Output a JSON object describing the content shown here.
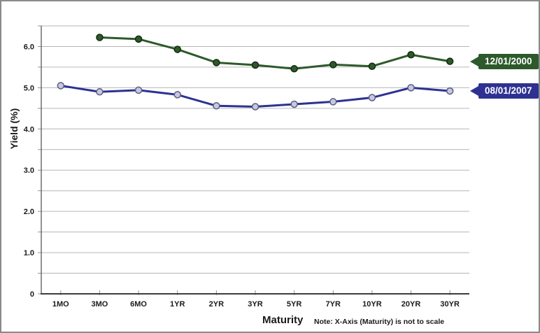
{
  "chart_data": {
    "type": "line",
    "title": "",
    "xlabel": "Maturity",
    "ylabel": "Yield (%)",
    "note": "Note: X-Axis (Maturity) is not to scale",
    "categories": [
      "1MO",
      "3MO",
      "6MO",
      "1YR",
      "2YR",
      "3YR",
      "5YR",
      "7YR",
      "10YR",
      "20YR",
      "30YR"
    ],
    "series": [
      {
        "name": "12/01/2000",
        "color": "#2d5a2b",
        "marker_fill": "#2d5a2b",
        "marker_edge": "#13290f",
        "values": [
          null,
          6.22,
          6.18,
          5.93,
          5.61,
          5.55,
          5.46,
          5.56,
          5.52,
          5.8,
          5.64
        ]
      },
      {
        "name": "08/01/2007",
        "color": "#2e3192",
        "marker_fill": "#c7c8de",
        "marker_edge": "#5a5b84",
        "values": [
          5.05,
          4.9,
          4.94,
          4.83,
          4.56,
          4.54,
          4.6,
          4.66,
          4.76,
          5.0,
          4.92
        ]
      }
    ],
    "ylim": [
      0,
      6.5
    ],
    "grid_step": 0.5,
    "grid": true,
    "legend_position": "right-callouts",
    "y_ticks": [
      {
        "value": 6,
        "label": "6.0"
      },
      {
        "value": 5,
        "label": "5.0"
      },
      {
        "value": 4,
        "label": "4.0"
      },
      {
        "value": 3,
        "label": "3.0"
      },
      {
        "value": 2,
        "label": "2.0"
      },
      {
        "value": 1,
        "label": "1.0"
      },
      {
        "value": 0,
        "label": "0"
      }
    ],
    "colors": {
      "gridline": "#b6b6b6",
      "x_axis": "#3d3d3d",
      "y_axis": "#6f6f6f",
      "tick": "#8f8f8f",
      "text": "#1a1a1a",
      "frame_border": "#8a8a8a",
      "background": "#ffffff",
      "callout_text": "#ffffff"
    }
  }
}
